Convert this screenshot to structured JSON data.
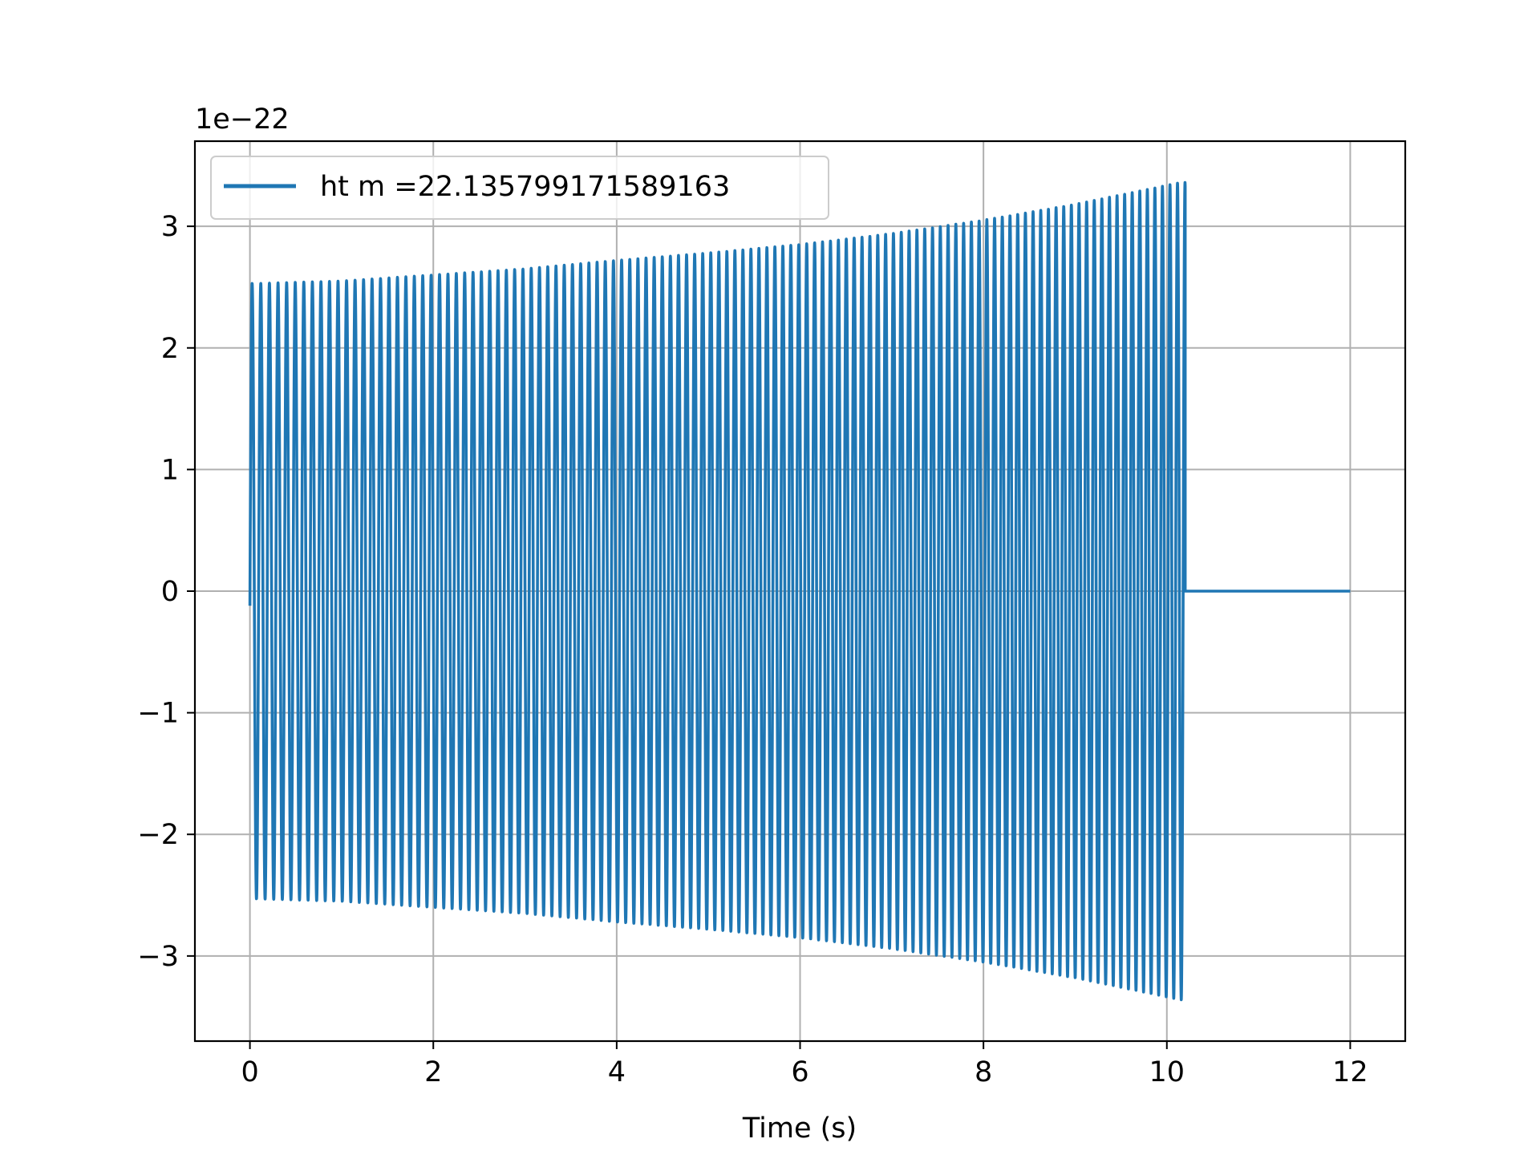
{
  "chart_data": {
    "type": "line",
    "title": "",
    "xlabel": "Time (s)",
    "ylabel": "",
    "offset_label": "1e−22",
    "xlim": [
      -0.6,
      12.6
    ],
    "ylim": [
      -3.7,
      3.7
    ],
    "x_ticks": [
      0,
      2,
      4,
      6,
      8,
      10,
      12
    ],
    "x_tick_labels": [
      "0",
      "2",
      "4",
      "6",
      "8",
      "10",
      "12"
    ],
    "y_ticks": [
      -3,
      -2,
      -1,
      0,
      1,
      2,
      3
    ],
    "y_tick_labels": [
      "−3",
      "−2",
      "−1",
      "0",
      "1",
      "2",
      "3"
    ],
    "grid": true,
    "legend_position": "top-left",
    "series": [
      {
        "name": "ht m =22.135799171589163",
        "color": "#1f77b4",
        "signal": "chirp",
        "t_start": 0,
        "t_end": 10.2,
        "initial_value": -0.12,
        "envelope": [
          [
            0.05,
            2.53
          ],
          [
            1,
            2.55
          ],
          [
            2,
            2.6
          ],
          [
            3,
            2.65
          ],
          [
            4,
            2.72
          ],
          [
            5,
            2.78
          ],
          [
            6,
            2.85
          ],
          [
            7,
            2.94
          ],
          [
            8,
            3.05
          ],
          [
            9,
            3.18
          ],
          [
            10.15,
            3.36
          ]
        ],
        "freq_start_hz": 10.6,
        "freq_end_hz": 12.2,
        "tail": {
          "t_start": 10.2,
          "t_end": 12,
          "value": 0
        }
      }
    ]
  }
}
